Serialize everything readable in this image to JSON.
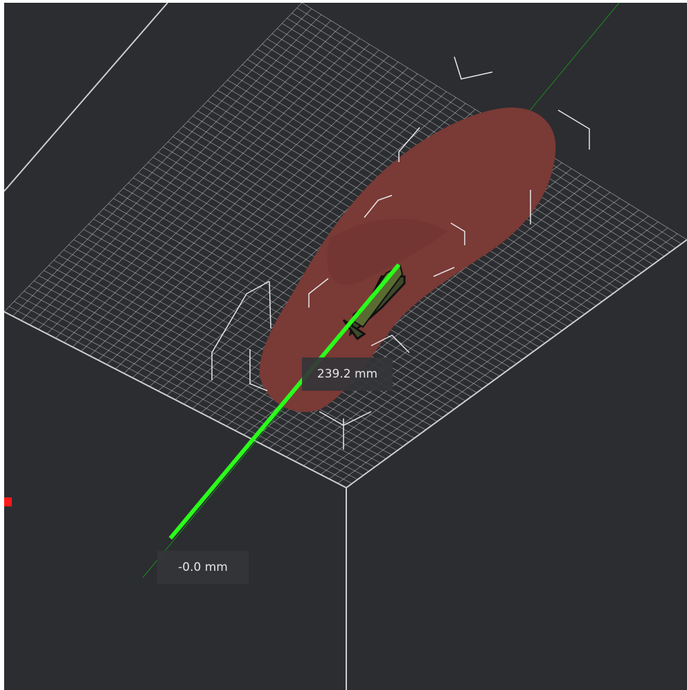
{
  "viewport": {
    "background_color": "#2b2d31",
    "grid_color": "#d9d9d9",
    "model_color": "#7a3a36",
    "measure_line_color": "#2aff1a",
    "axis_marker_color": "#ff1a1a"
  },
  "measurement": {
    "end_label": "239.2 mm",
    "start_label": "-0.0 mm"
  },
  "icons": {
    "move_arrow": "arrow-gizmo-icon",
    "axis_marker": "red-axis-marker-icon"
  }
}
